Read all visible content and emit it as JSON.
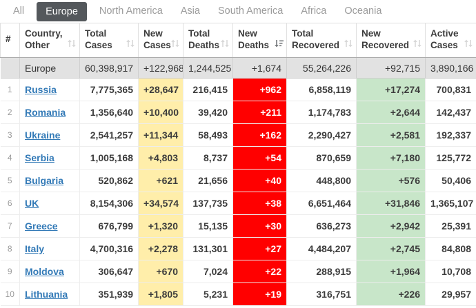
{
  "tabs": {
    "items": [
      {
        "label": "All",
        "active": false
      },
      {
        "label": "Europe",
        "active": true
      },
      {
        "label": "North America",
        "active": false
      },
      {
        "label": "Asia",
        "active": false
      },
      {
        "label": "South America",
        "active": false
      },
      {
        "label": "Africa",
        "active": false
      },
      {
        "label": "Oceania",
        "active": false
      }
    ]
  },
  "icons": {
    "sort_unsorted": "sort-updown-icon",
    "sort_desc": "sort-desc-icon"
  },
  "colors": {
    "new_cases_bg": "#FFEEAA",
    "new_deaths_bg": "#FF0000",
    "new_recovered_bg": "#C8E6C9",
    "active_tab_bg": "#54585C",
    "link_color": "#337AB7",
    "summary_row_bg": "#E2E2E2"
  },
  "table": {
    "columns": [
      {
        "key": "rank",
        "line1": "#",
        "line2": "",
        "sortable": false,
        "sort": "none"
      },
      {
        "key": "country",
        "line1": "Country,",
        "line2": "Other",
        "sortable": true,
        "sort": "none"
      },
      {
        "key": "total_cases",
        "line1": "Total",
        "line2": "Cases",
        "sortable": true,
        "sort": "none"
      },
      {
        "key": "new_cases",
        "line1": "New",
        "line2": "Cases",
        "sortable": true,
        "sort": "none"
      },
      {
        "key": "total_deaths",
        "line1": "Total",
        "line2": "Deaths",
        "sortable": true,
        "sort": "none"
      },
      {
        "key": "new_deaths",
        "line1": "New",
        "line2": "Deaths",
        "sortable": true,
        "sort": "desc"
      },
      {
        "key": "total_recovered",
        "line1": "Total",
        "line2": "Recovered",
        "sortable": true,
        "sort": "none"
      },
      {
        "key": "new_recovered",
        "line1": "New",
        "line2": "Recovered",
        "sortable": true,
        "sort": "none"
      },
      {
        "key": "active_cases",
        "line1": "Active",
        "line2": "Cases",
        "sortable": true,
        "sort": "none"
      }
    ],
    "summary_row": {
      "region": "Europe",
      "total_cases": "60,398,917",
      "new_cases": "+122,968",
      "total_deaths": "1,244,525",
      "new_deaths": "+1,674",
      "total_recovered": "55,264,226",
      "new_recovered": "+92,715",
      "active_cases": "3,890,166"
    },
    "rows": [
      {
        "rank": "1",
        "country": "Russia",
        "total_cases": "7,775,365",
        "new_cases": "+28,647",
        "total_deaths": "216,415",
        "new_deaths": "+962",
        "total_recovered": "6,858,119",
        "new_recovered": "+17,274",
        "active_cases": "700,831"
      },
      {
        "rank": "2",
        "country": "Romania",
        "total_cases": "1,356,640",
        "new_cases": "+10,400",
        "total_deaths": "39,420",
        "new_deaths": "+211",
        "total_recovered": "1,174,783",
        "new_recovered": "+2,644",
        "active_cases": "142,437"
      },
      {
        "rank": "3",
        "country": "Ukraine",
        "total_cases": "2,541,257",
        "new_cases": "+11,344",
        "total_deaths": "58,493",
        "new_deaths": "+162",
        "total_recovered": "2,290,427",
        "new_recovered": "+2,581",
        "active_cases": "192,337"
      },
      {
        "rank": "4",
        "country": "Serbia",
        "total_cases": "1,005,168",
        "new_cases": "+4,803",
        "total_deaths": "8,737",
        "new_deaths": "+54",
        "total_recovered": "870,659",
        "new_recovered": "+7,180",
        "active_cases": "125,772"
      },
      {
        "rank": "5",
        "country": "Bulgaria",
        "total_cases": "520,862",
        "new_cases": "+621",
        "total_deaths": "21,656",
        "new_deaths": "+40",
        "total_recovered": "448,800",
        "new_recovered": "+576",
        "active_cases": "50,406"
      },
      {
        "rank": "6",
        "country": "UK",
        "total_cases": "8,154,306",
        "new_cases": "+34,574",
        "total_deaths": "137,735",
        "new_deaths": "+38",
        "total_recovered": "6,651,464",
        "new_recovered": "+31,846",
        "active_cases": "1,365,107"
      },
      {
        "rank": "7",
        "country": "Greece",
        "total_cases": "676,799",
        "new_cases": "+1,320",
        "total_deaths": "15,135",
        "new_deaths": "+30",
        "total_recovered": "636,273",
        "new_recovered": "+2,942",
        "active_cases": "25,391"
      },
      {
        "rank": "8",
        "country": "Italy",
        "total_cases": "4,700,316",
        "new_cases": "+2,278",
        "total_deaths": "131,301",
        "new_deaths": "+27",
        "total_recovered": "4,484,207",
        "new_recovered": "+2,745",
        "active_cases": "84,808"
      },
      {
        "rank": "9",
        "country": "Moldova",
        "total_cases": "306,647",
        "new_cases": "+670",
        "total_deaths": "7,024",
        "new_deaths": "+22",
        "total_recovered": "288,915",
        "new_recovered": "+1,964",
        "active_cases": "10,708"
      },
      {
        "rank": "10",
        "country": "Lithuania",
        "total_cases": "351,939",
        "new_cases": "+1,805",
        "total_deaths": "5,231",
        "new_deaths": "+19",
        "total_recovered": "316,751",
        "new_recovered": "+226",
        "active_cases": "29,957"
      }
    ]
  }
}
